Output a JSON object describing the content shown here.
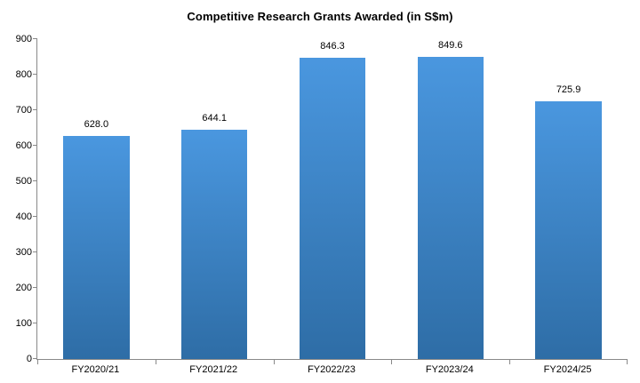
{
  "title": "Competitive Research Grants Awarded (in S$m)",
  "chart_data": {
    "type": "bar",
    "title": "Competitive Research Grants Awarded (in S$m)",
    "categories": [
      "FY2020/21",
      "FY2021/22",
      "FY2022/23",
      "FY2023/24",
      "FY2024/25"
    ],
    "values": [
      628.0,
      644.1,
      846.3,
      849.6,
      725.9
    ],
    "value_labels": [
      "628.0",
      "644.1",
      "846.3",
      "849.6",
      "725.9"
    ],
    "xlabel": "",
    "ylabel": "",
    "ylim": [
      0,
      900
    ],
    "yticks": [
      0,
      100,
      200,
      300,
      400,
      500,
      600,
      700,
      800,
      900
    ],
    "grid": false,
    "legend_position": "none",
    "colors": {
      "bar_gradient_top": "#4A97DF",
      "bar_gradient_bottom": "#2E6DA6",
      "axis": "#898989",
      "text": "#000000",
      "background": "#FFFFFF"
    }
  }
}
